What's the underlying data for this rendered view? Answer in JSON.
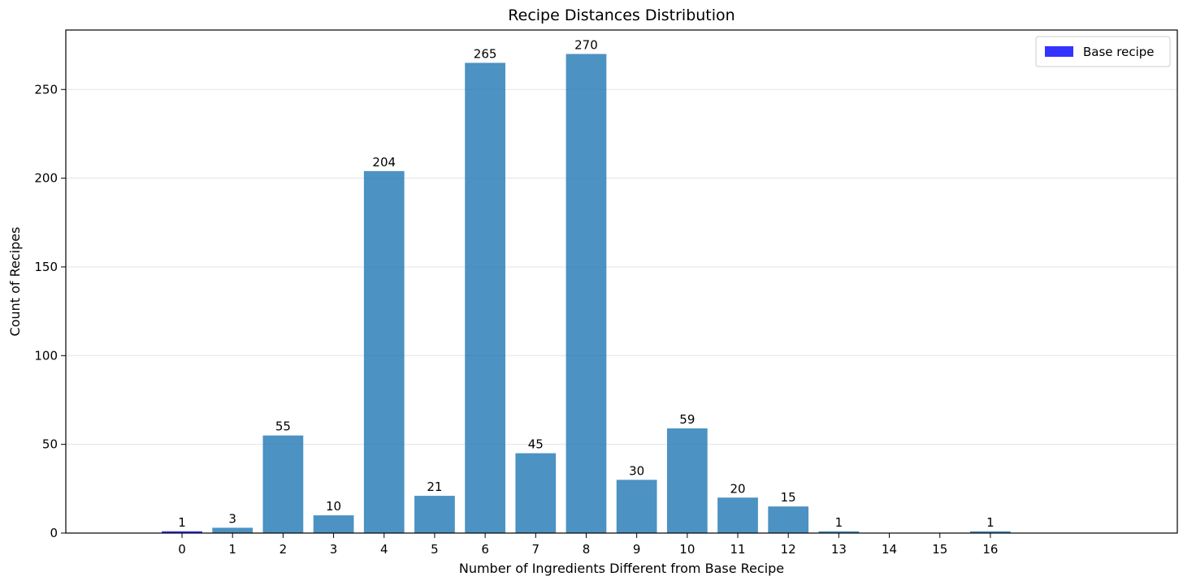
{
  "chart_data": {
    "type": "bar",
    "title": "Recipe Distances Distribution",
    "xlabel": "Number of Ingredients Different from Base Recipe",
    "ylabel": "Count of Recipes",
    "categories": [
      "0",
      "1",
      "2",
      "3",
      "4",
      "5",
      "6",
      "7",
      "8",
      "9",
      "10",
      "11",
      "12",
      "13",
      "14",
      "15",
      "16"
    ],
    "values": [
      1,
      3,
      55,
      10,
      204,
      21,
      265,
      45,
      270,
      30,
      59,
      20,
      15,
      1,
      0,
      0,
      1
    ],
    "data_labels": [
      "1",
      "3",
      "55",
      "10",
      "204",
      "21",
      "265",
      "45",
      "270",
      "30",
      "59",
      "20",
      "15",
      "1",
      "",
      "",
      "1"
    ],
    "bar_colors": [
      "#0000ff",
      "#1f77b4",
      "#1f77b4",
      "#1f77b4",
      "#1f77b4",
      "#1f77b4",
      "#1f77b4",
      "#1f77b4",
      "#1f77b4",
      "#1f77b4",
      "#1f77b4",
      "#1f77b4",
      "#1f77b4",
      "#1f77b4",
      "#1f77b4",
      "#1f77b4",
      "#1f77b4"
    ],
    "bar_opacity": 0.8,
    "xlim": [
      -2.3,
      19.7
    ],
    "ylim": [
      0,
      283.5
    ],
    "yticks": [
      0,
      50,
      100,
      150,
      200,
      250
    ],
    "grid": "horizontal",
    "legend": {
      "position": "top-right",
      "entries": [
        {
          "label": "Base recipe",
          "color": "#0000ff"
        }
      ]
    }
  }
}
